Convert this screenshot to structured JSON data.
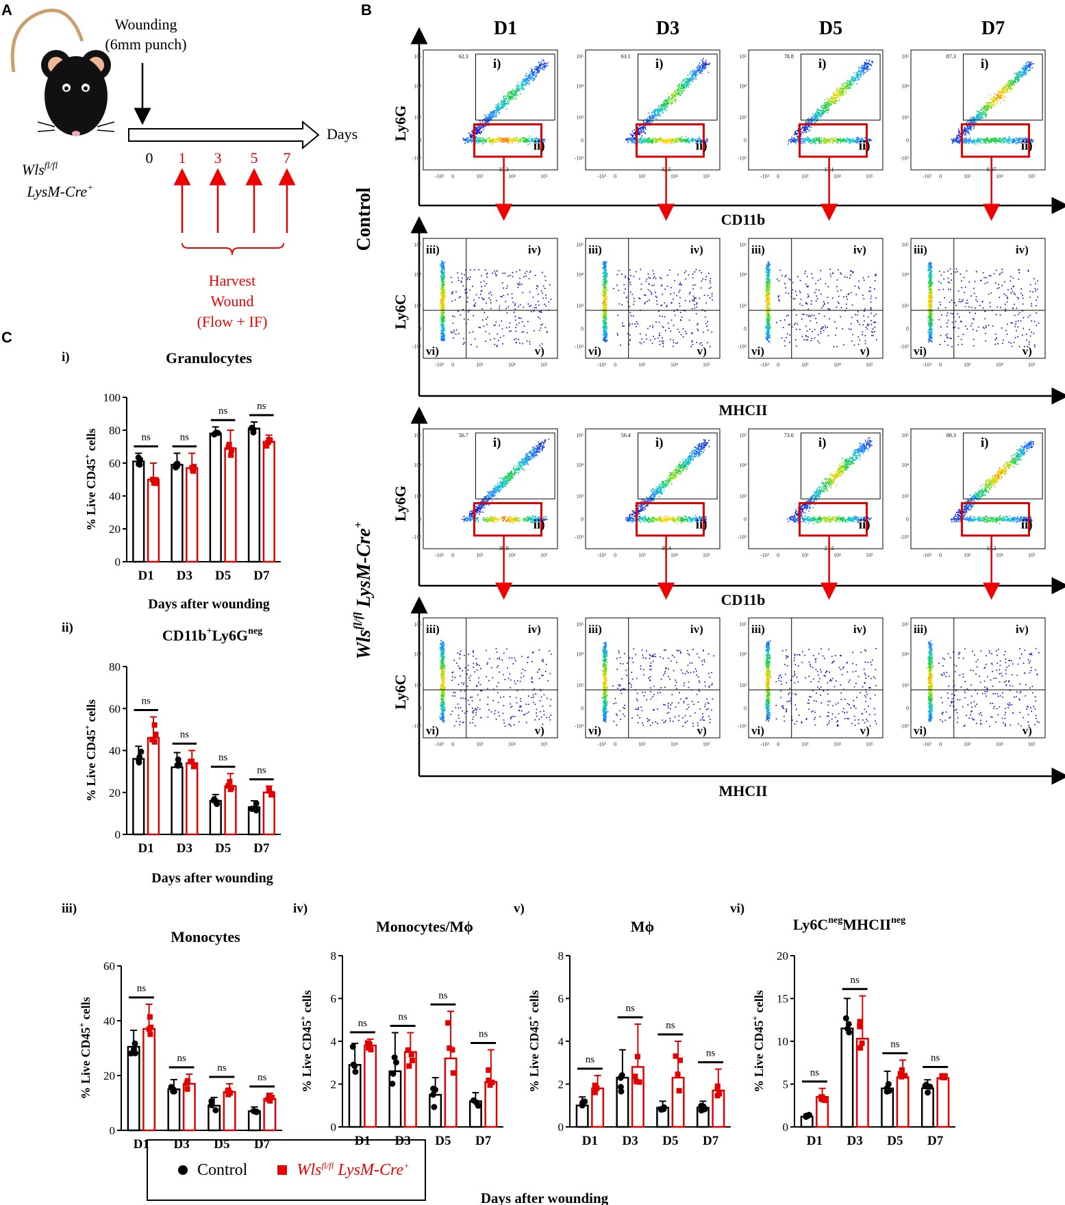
{
  "colors": {
    "control": "#000000",
    "ko": "#e00000",
    "gate": "#e00000"
  },
  "panels": {
    "a": "A",
    "b": "B",
    "c": "C"
  },
  "panel_a": {
    "wounding": "Wounding",
    "punch": "(6mm punch)",
    "days_label": "Days",
    "timeline_ticks": [
      "0",
      "1",
      "3",
      "5",
      "7"
    ],
    "genotype_line1": "Wls",
    "genotype_sup1": "fl/fl",
    "genotype_line2": "LysM-Cre",
    "genotype_sup2": "+",
    "harvest": [
      "Harvest",
      "Wound",
      "(Flow + IF)"
    ]
  },
  "panel_b": {
    "days": [
      "D1",
      "D3",
      "D5",
      "D7"
    ],
    "row_labels": {
      "control": "Control",
      "ko_main": "Wls",
      "ko_sup1": "fl/fl",
      "ko_mid": " LysM-Cre",
      "ko_sup2": "+"
    },
    "axis": {
      "ly6g": "Ly6G",
      "cd11b": "CD11b",
      "ly6c": "Ly6C",
      "mhcii": "MHCII"
    },
    "gate_labels": [
      "i)",
      "ii)",
      "iii)",
      "iv)",
      "v)",
      "vi)"
    ],
    "control_gate_i": [
      "62.3",
      "63.1",
      "78.8",
      "87.3"
    ],
    "control_gate_ii": [
      "33.3",
      "32.5",
      "17.1",
      "9.07"
    ],
    "ko_gate_i": [
      "56.7",
      "56.4",
      "73.0",
      "80.3"
    ],
    "ko_gate_ii": [
      "38.9",
      "39.4",
      "21.5",
      "15.2"
    ],
    "x_ticks": [
      "-10³",
      "0",
      "10³",
      "10⁴",
      "10⁵"
    ],
    "y_ticks": [
      "10⁵",
      "10⁴",
      "10³",
      "0",
      "-10³"
    ]
  },
  "panel_c": {
    "xlabel": "Days after wounding",
    "ylabel_pre": "% Live CD45",
    "ylabel_sup": "+",
    "ylabel_post": " cells",
    "ns": "ns"
  },
  "legend": {
    "control": "Control",
    "ko": "Wls",
    "ko_sup1": "fl/fl",
    "ko_mid": " LysM-Cre",
    "ko_sup2": "+"
  },
  "chart_data": [
    {
      "id": "i",
      "roman": "i)",
      "type": "bar",
      "title": "Granulocytes",
      "title_sup": "",
      "title_tail": "",
      "categories": [
        "D1",
        "D3",
        "D5",
        "D7"
      ],
      "ylim": [
        0,
        100
      ],
      "yticks": [
        0,
        20,
        40,
        60,
        80,
        100
      ],
      "series": [
        {
          "name": "Control",
          "values": [
            61,
            59,
            78,
            81
          ],
          "errors": [
            5,
            7,
            4,
            4
          ]
        },
        {
          "name": "Wls fl/fl LysM-Cre+",
          "values": [
            50,
            57,
            69,
            73
          ],
          "errors": [
            10,
            9,
            11,
            4
          ]
        }
      ]
    },
    {
      "id": "ii",
      "roman": "ii)",
      "type": "bar",
      "title": "CD11b",
      "title_sup": "+",
      "title_tail": "Ly6G",
      "title_tail_sup": "neg",
      "categories": [
        "D1",
        "D3",
        "D5",
        "D7"
      ],
      "ylim": [
        0,
        80
      ],
      "yticks": [
        0,
        20,
        40,
        60,
        80
      ],
      "series": [
        {
          "name": "Control",
          "values": [
            36,
            32,
            16,
            13
          ],
          "errors": [
            6,
            7,
            3,
            3
          ]
        },
        {
          "name": "Wls fl/fl LysM-Cre+",
          "values": [
            46,
            34,
            23,
            20
          ],
          "errors": [
            10,
            6,
            6,
            3
          ]
        }
      ]
    },
    {
      "id": "iii",
      "roman": "iii)",
      "type": "bar",
      "title": "Monocytes",
      "title_sup": "",
      "title_tail": "",
      "categories": [
        "D1",
        "D3",
        "D5",
        "D7"
      ],
      "ylim": [
        0,
        60
      ],
      "yticks": [
        0,
        20,
        40,
        60
      ],
      "series": [
        {
          "name": "Control",
          "values": [
            30.5,
            15,
            9,
            7
          ],
          "errors": [
            6,
            3.5,
            3,
            1.5
          ]
        },
        {
          "name": "Wls fl/fl LysM-Cre+",
          "values": [
            37,
            17,
            14,
            11.5
          ],
          "errors": [
            9,
            3.5,
            3,
            2
          ]
        }
      ]
    },
    {
      "id": "iv",
      "roman": "iv)",
      "type": "bar",
      "title": "Monocytes/Mϕ",
      "title_sup": "",
      "title_tail": "",
      "categories": [
        "D1",
        "D3",
        "D5",
        "D7"
      ],
      "ylim": [
        0,
        8
      ],
      "yticks": [
        0,
        2,
        4,
        6,
        8
      ],
      "series": [
        {
          "name": "Control",
          "values": [
            2.9,
            2.6,
            1.5,
            1.2
          ],
          "errors": [
            1.0,
            1.8,
            0.8,
            0.4
          ]
        },
        {
          "name": "Wls fl/fl LysM-Cre+",
          "values": [
            3.8,
            3.5,
            3.2,
            2.1
          ],
          "errors": [
            0.3,
            0.9,
            2.2,
            1.5
          ]
        }
      ]
    },
    {
      "id": "v",
      "roman": "v)",
      "type": "bar",
      "title": "Mϕ",
      "title_sup": "",
      "title_tail": "",
      "categories": [
        "D1",
        "D3",
        "D5",
        "D7"
      ],
      "ylim": [
        0,
        8
      ],
      "yticks": [
        0,
        2,
        4,
        6,
        8
      ],
      "series": [
        {
          "name": "Control",
          "values": [
            1.0,
            2.3,
            0.9,
            0.9
          ],
          "errors": [
            0.4,
            1.3,
            0.3,
            0.3
          ]
        },
        {
          "name": "Wls fl/fl LysM-Cre+",
          "values": [
            1.8,
            2.8,
            2.3,
            1.7
          ],
          "errors": [
            0.6,
            2.0,
            1.7,
            1.0
          ]
        }
      ]
    },
    {
      "id": "vi",
      "roman": "vi)",
      "type": "bar",
      "title": "Ly6C",
      "title_sup": "neg",
      "title_tail": "MHCII",
      "title_tail_sup": "neg",
      "categories": [
        "D1",
        "D3",
        "D5",
        "D7"
      ],
      "ylim": [
        0,
        20
      ],
      "yticks": [
        0,
        5,
        10,
        15,
        20
      ],
      "series": [
        {
          "name": "Control",
          "values": [
            1.2,
            11.5,
            4.5,
            4.5
          ],
          "errors": [
            0.3,
            3.5,
            2.0,
            1.0
          ]
        },
        {
          "name": "Wls fl/fl LysM-Cre+",
          "values": [
            3.5,
            10.3,
            5.8,
            5.7
          ],
          "errors": [
            1.0,
            5.0,
            2.0,
            0.5
          ]
        }
      ]
    }
  ]
}
